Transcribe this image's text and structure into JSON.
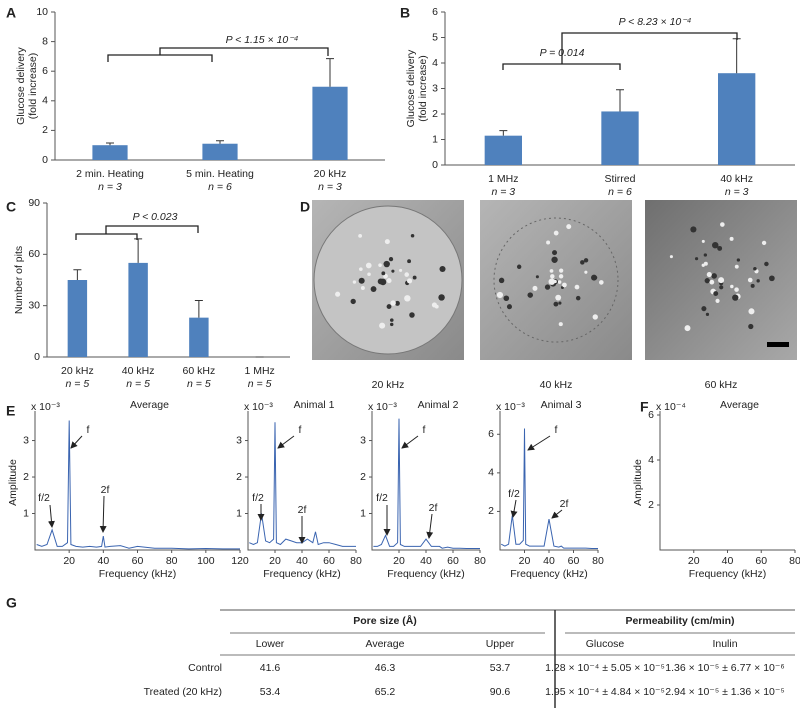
{
  "chart_data": [
    {
      "panel": "A",
      "type": "bar",
      "ylabel": [
        "Glucose delivery",
        "(fold increase)"
      ],
      "categories": [
        "2 min. Heating",
        "5 min. Heating",
        "20 kHz"
      ],
      "n_labels": [
        "n = 3",
        "n = 6",
        "n = 3"
      ],
      "values": [
        1.0,
        1.1,
        4.95
      ],
      "errors": [
        0.15,
        0.2,
        1.9
      ],
      "color": "#4f81bd",
      "ylim": [
        0,
        10
      ],
      "yticks": [
        0,
        2,
        4,
        6,
        8,
        10
      ],
      "annotations": [
        "P <  1.15 × 10⁻⁴"
      ]
    },
    {
      "panel": "B",
      "type": "bar",
      "ylabel": [
        "Glucose delivery",
        "(fold increase)"
      ],
      "categories": [
        "1 MHz",
        "Stirred",
        "40 kHz"
      ],
      "n_labels": [
        "n = 3",
        "n = 6",
        "n = 3"
      ],
      "values": [
        1.15,
        2.1,
        3.6
      ],
      "errors": [
        0.2,
        0.85,
        1.35
      ],
      "color": "#4f81bd",
      "ylim": [
        0,
        6
      ],
      "yticks": [
        0,
        1,
        2,
        3,
        4,
        5,
        6
      ],
      "annotations": [
        "P = 0.014",
        "P <  8.23 × 10⁻⁴"
      ]
    },
    {
      "panel": "C",
      "type": "bar",
      "ylabel": [
        "Number of pits"
      ],
      "categories": [
        "20 kHz",
        "40 kHz",
        "60 kHz",
        "1 MHz"
      ],
      "n_labels": [
        "n = 5",
        "n = 5",
        "n = 5",
        "n = 5"
      ],
      "values": [
        45,
        55,
        23,
        0
      ],
      "errors": [
        6,
        14,
        10,
        0
      ],
      "color": "#4f81bd",
      "ylim": [
        0,
        90
      ],
      "yticks": [
        0,
        30,
        60,
        90
      ],
      "annotations": [
        "P < 0.023"
      ]
    },
    {
      "panel": "E",
      "type": "line",
      "title": "Average",
      "scale_label": "x 10⁻³",
      "ylabel": "Amplitude",
      "xlabel": "Frequency (kHz)",
      "xlim": [
        0,
        120
      ],
      "xticks": [
        20,
        40,
        60,
        80,
        100,
        120
      ],
      "ylim": [
        0,
        3.7
      ],
      "yticks": [
        1,
        2,
        3
      ],
      "series": [
        {
          "name": "Average",
          "color": "#3a64b0",
          "x": [
            1,
            4,
            7,
            10,
            13,
            16,
            19,
            20,
            21,
            24,
            28,
            32,
            36,
            39,
            40,
            41,
            44,
            50,
            55,
            60,
            70,
            80,
            90,
            100,
            110,
            120
          ],
          "values": [
            0.15,
            0.1,
            0.15,
            0.55,
            0.1,
            0.1,
            0.2,
            3.55,
            0.15,
            0.1,
            0.08,
            0.1,
            0.08,
            0.1,
            0.38,
            0.08,
            0.1,
            0.12,
            0.05,
            0.1,
            0.05,
            0.05,
            0.03,
            0.04,
            0.03,
            0.03
          ]
        }
      ],
      "annotations": [
        "f/2",
        "f",
        "2f"
      ]
    },
    {
      "type": "line",
      "title": "Animal 1",
      "scale_label": "x 10⁻³",
      "xlabel": "Frequency (kHz)",
      "xlim": [
        0,
        80
      ],
      "xticks": [
        20,
        40,
        60,
        80
      ],
      "ylim": [
        0,
        3.7
      ],
      "yticks": [
        1,
        2,
        3
      ],
      "series": [
        {
          "name": "Animal 1",
          "color": "#3a64b0",
          "x": [
            1,
            4,
            7,
            10,
            13,
            16,
            19,
            20,
            21,
            24,
            28,
            32,
            36,
            40,
            44,
            48,
            50,
            52,
            56,
            60,
            65,
            70,
            75,
            80
          ],
          "values": [
            0.2,
            0.15,
            0.2,
            1.0,
            0.25,
            0.2,
            0.3,
            3.5,
            0.2,
            0.15,
            0.3,
            0.25,
            0.2,
            0.2,
            0.3,
            0.2,
            0.5,
            0.15,
            0.2,
            0.2,
            0.15,
            0.1,
            0.1,
            0.1
          ]
        }
      ],
      "annotations": [
        "f/2",
        "f",
        "2f"
      ]
    },
    {
      "type": "line",
      "title": "Animal 2",
      "scale_label": "x 10⁻³",
      "xlabel": "Frequency (kHz)",
      "xlim": [
        0,
        80
      ],
      "xticks": [
        20,
        40,
        60,
        80
      ],
      "ylim": [
        0,
        3.7
      ],
      "yticks": [
        1,
        2,
        3
      ],
      "series": [
        {
          "name": "Animal 2",
          "color": "#3a64b0",
          "x": [
            1,
            4,
            7,
            10,
            13,
            16,
            19,
            20,
            21,
            24,
            28,
            32,
            36,
            40,
            44,
            48,
            50,
            52,
            56,
            60,
            65,
            70,
            75,
            80
          ],
          "values": [
            0.1,
            0.1,
            0.15,
            0.4,
            0.1,
            0.1,
            0.2,
            3.6,
            0.15,
            0.1,
            0.1,
            0.1,
            0.1,
            0.3,
            0.1,
            0.1,
            0.1,
            0.05,
            0.08,
            0.05,
            0.05,
            0.04,
            0.04,
            0.04
          ]
        }
      ],
      "annotations": [
        "f/2",
        "f",
        "2f"
      ]
    },
    {
      "type": "line",
      "title": "Animal 3",
      "scale_label": "x 10⁻³",
      "xlabel": "Frequency (kHz)",
      "xlim": [
        0,
        80
      ],
      "xticks": [
        20,
        40,
        60,
        80
      ],
      "ylim": [
        0,
        7
      ],
      "yticks": [
        2,
        4,
        6
      ],
      "series": [
        {
          "name": "Animal 3",
          "color": "#3a64b0",
          "x": [
            1,
            4,
            7,
            10,
            13,
            16,
            19,
            20,
            21,
            24,
            28,
            32,
            36,
            40,
            44,
            48,
            50,
            52,
            56,
            60,
            65,
            70,
            75,
            80
          ],
          "values": [
            0.3,
            0.2,
            0.3,
            1.8,
            0.3,
            0.3,
            0.5,
            6.3,
            0.3,
            0.2,
            0.2,
            0.2,
            0.2,
            1.6,
            0.2,
            0.15,
            0.2,
            0.1,
            0.1,
            0.1,
            0.1,
            0.1,
            0.08,
            0.08
          ]
        }
      ],
      "annotations": [
        "f/2",
        "f",
        "2f"
      ]
    },
    {
      "panel": "F",
      "type": "line",
      "title": "Average",
      "scale_label": "x 10⁻⁴",
      "ylabel": "Amplitude",
      "xlabel": "Frequency (kHz)",
      "xlim": [
        0,
        80
      ],
      "xticks": [
        20,
        40,
        60,
        80
      ],
      "ylim": [
        0,
        6
      ],
      "yticks": [
        2,
        4,
        6
      ],
      "series": []
    }
  ],
  "panel_d": {
    "panel": "D",
    "captions": [
      "20 kHz",
      "40 kHz",
      "60 kHz"
    ]
  },
  "table": {
    "panel": "G",
    "groups": [
      "Pore size (Å)",
      "Permeability (cm/min)"
    ],
    "columns": [
      "Lower",
      "Average",
      "Upper",
      "Glucose",
      "Inulin"
    ],
    "rows": [
      [
        "Control",
        41.6,
        46.3,
        53.7,
        "1.28 × 10⁻⁴ ± 5.05 × 10⁻⁵",
        "1.36 × 10⁻⁵ ± 6.77 × 10⁻⁶"
      ],
      [
        "Treated (20 kHz)",
        53.4,
        65.2,
        90.6,
        "1.95 × 10⁻⁴ ± 4.84 × 10⁻⁵",
        "2.94 × 10⁻⁵ ± 1.36 × 10⁻⁵"
      ]
    ]
  }
}
